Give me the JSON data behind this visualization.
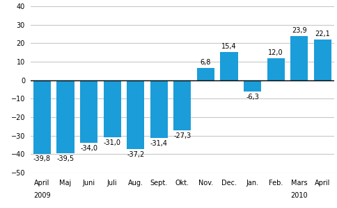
{
  "categories": [
    "April",
    "Maj",
    "Juni",
    "Juli",
    "Aug.",
    "Sept.",
    "Okt.",
    "Nov.",
    "Dec.",
    "Jan.",
    "Feb.",
    "Mars",
    "April"
  ],
  "values": [
    -39.8,
    -39.5,
    -34.0,
    -31.0,
    -37.2,
    -31.4,
    -27.3,
    6.8,
    15.4,
    -6.3,
    12.0,
    23.9,
    22.1
  ],
  "bar_color": "#1b9dd9",
  "ylim": [
    -50,
    40
  ],
  "yticks": [
    -50,
    -40,
    -30,
    -20,
    -10,
    0,
    10,
    20,
    30,
    40
  ],
  "value_labels": [
    "-39,8",
    "-39,5",
    "-34,0",
    "-31,0",
    "-37,2",
    "-31,4",
    "-27,3",
    "6,8",
    "15,4",
    "-6,3",
    "12,0",
    "23,9",
    "22,1"
  ],
  "background_color": "#ffffff",
  "grid_color": "#c8c8c8",
  "label_fontsize": 7,
  "value_fontsize": 7,
  "bar_width": 0.75,
  "year_label_indices": [
    0,
    11
  ],
  "year_labels": [
    "2009",
    "2010"
  ]
}
